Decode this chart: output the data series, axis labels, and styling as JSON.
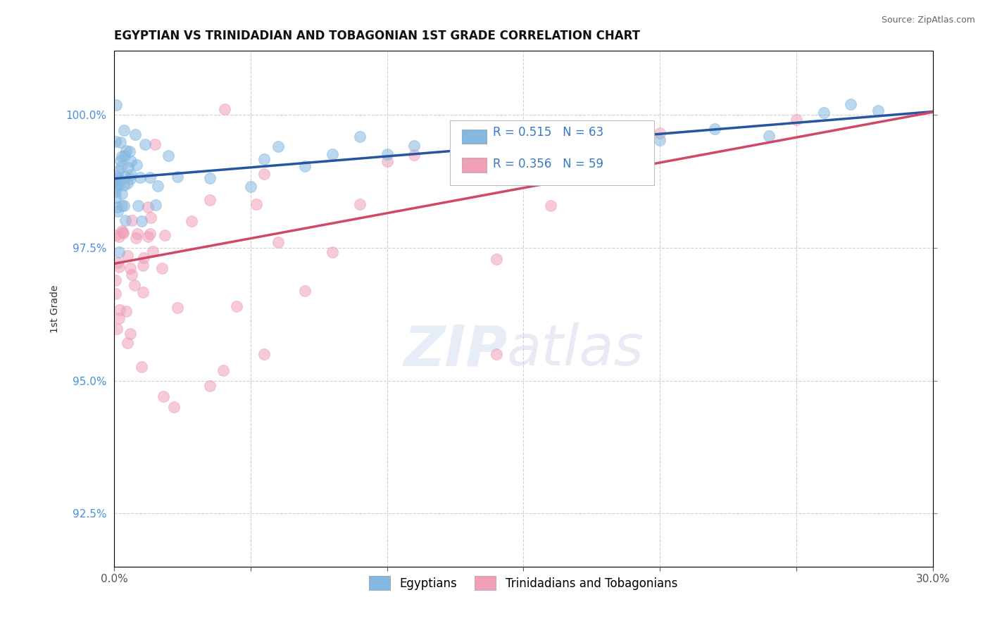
{
  "title": "EGYPTIAN VS TRINIDADIAN AND TOBAGONIAN 1ST GRADE CORRELATION CHART",
  "source": "Source: ZipAtlas.com",
  "ylabel": "1st Grade",
  "blue_R": "0.515",
  "blue_N": "63",
  "pink_R": "0.356",
  "pink_N": "59",
  "blue_color": "#85b8e0",
  "pink_color": "#f0a0b8",
  "blue_line_color": "#2855a0",
  "pink_line_color": "#d04868",
  "legend_label_blue": "Egyptians",
  "legend_label_pink": "Trinidadians and Tobagonians",
  "xlim": [
    0.0,
    30.0
  ],
  "ylim": [
    91.5,
    101.2
  ],
  "ytick_vals": [
    92.5,
    95.0,
    97.5,
    100.0
  ],
  "ytick_labels": [
    "92.5%",
    "95.0%",
    "97.5%",
    "100.0%"
  ],
  "blue_intercept": 98.8,
  "blue_slope": 0.042,
  "pink_intercept": 97.2,
  "pink_slope": 0.095
}
